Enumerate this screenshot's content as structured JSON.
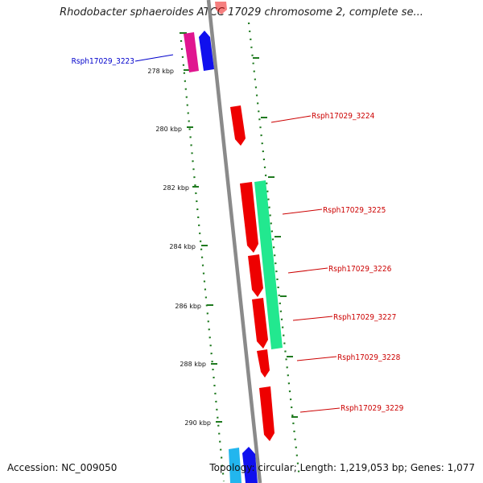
{
  "title": "Rhodobacter sphaeroides ATCC 17029 chromosome 2, complete se...",
  "accession": "Accession: NC_009050",
  "topology": "Topology: circular; Length: 1,219,053 bp; Genes: 1,077",
  "colors": {
    "backbone": "#8a8a8a",
    "ticks": "#1f7a1f",
    "forward_gene": "#ee0000",
    "cds_feature": "#22e88f",
    "magenta_gene": "#e0168f",
    "blue_gene": "#1010ee",
    "cyan_gene": "#22b6ee",
    "label_red": "#cc0000",
    "label_blue": "#0000cc"
  },
  "scale": {
    "unit": "kbp",
    "labels": [
      {
        "kb": 278,
        "text": "278 kbp"
      },
      {
        "kb": 280,
        "text": "280 kbp"
      },
      {
        "kb": 282,
        "text": "282 kbp"
      },
      {
        "kb": 284,
        "text": "284 kbp"
      },
      {
        "kb": 286,
        "text": "286 kbp"
      },
      {
        "kb": 288,
        "text": "288 kbp"
      },
      {
        "kb": 290,
        "text": "290 kbp"
      }
    ]
  },
  "genes": [
    {
      "id": "Rsph17029_3223",
      "label": "Rsph17029_3223",
      "side": "left",
      "color": "#0000cc"
    },
    {
      "id": "Rsph17029_3224",
      "label": "Rsph17029_3224",
      "side": "right",
      "color": "#cc0000"
    },
    {
      "id": "Rsph17029_3225",
      "label": "Rsph17029_3225",
      "side": "right",
      "color": "#cc0000"
    },
    {
      "id": "Rsph17029_3226",
      "label": "Rsph17029_3226",
      "side": "right",
      "color": "#cc0000"
    },
    {
      "id": "Rsph17029_3227",
      "label": "Rsph17029_3227",
      "side": "right",
      "color": "#cc0000"
    },
    {
      "id": "Rsph17029_3228",
      "label": "Rsph17029_3228",
      "side": "right",
      "color": "#cc0000"
    },
    {
      "id": "Rsph17029_3229",
      "label": "Rsph17029_3229",
      "side": "right",
      "color": "#cc0000"
    }
  ]
}
